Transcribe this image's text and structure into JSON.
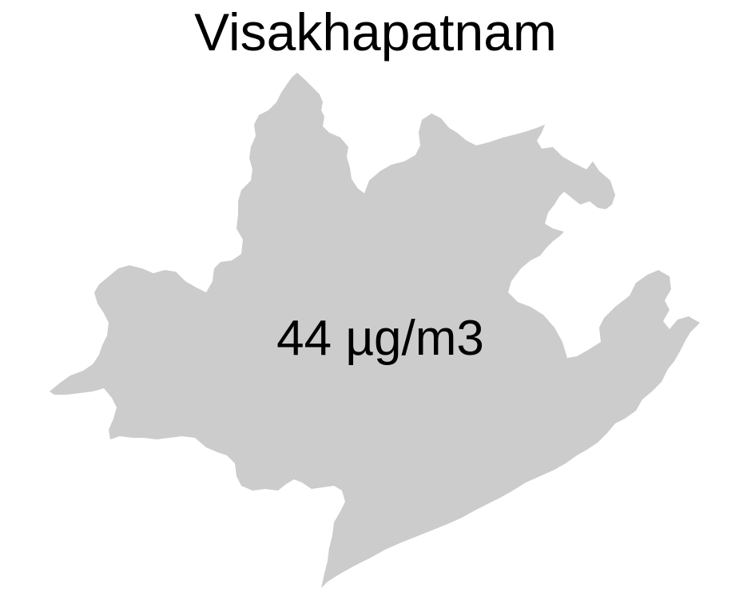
{
  "map": {
    "title": "Visakhapatnam",
    "value_label": "44 µg/m3",
    "region": {
      "name": "Visakhapatnam",
      "value": 44,
      "unit": "µg/m3"
    },
    "fill_color": "#cccccc",
    "background_color": "#ffffff",
    "text_color": "#000000"
  }
}
